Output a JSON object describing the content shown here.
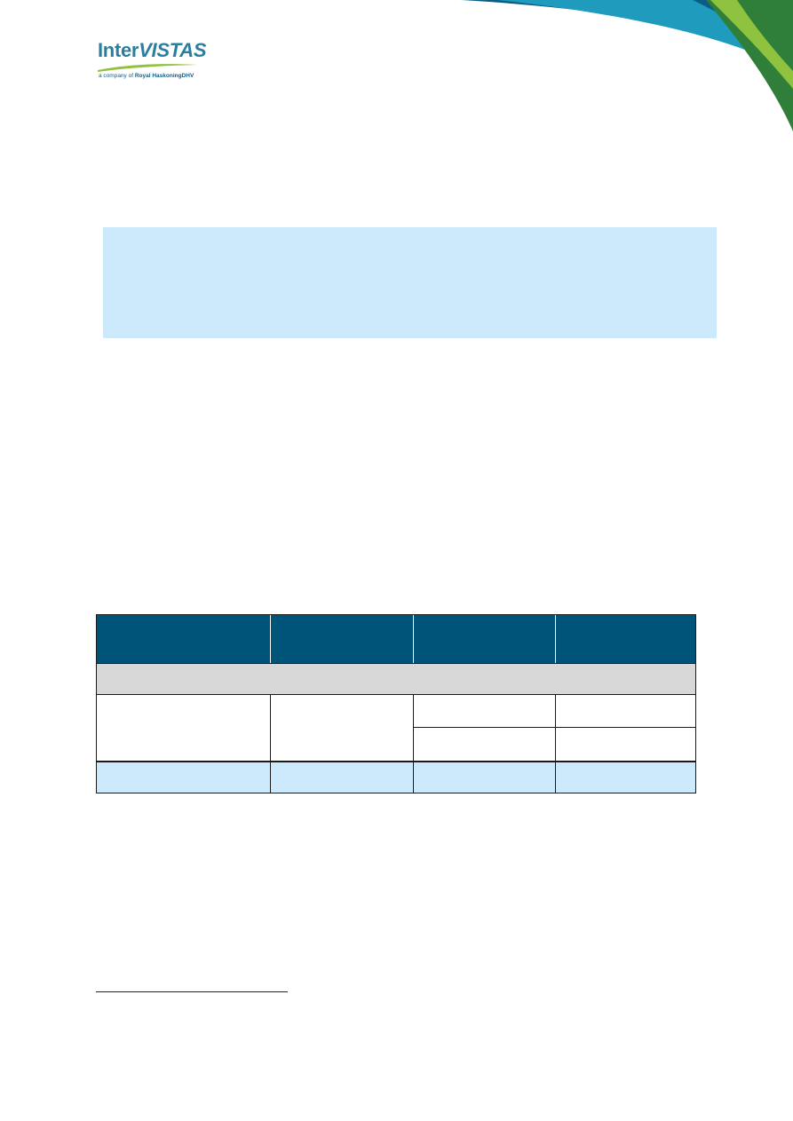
{
  "branding": {
    "logo_name_part1": "Inter",
    "logo_name_part2": "VISTAS",
    "tagline_prefix": "a company of ",
    "tagline_company": "Royal HaskoningDHV",
    "colors": {
      "swoosh_dark_blue": "#0a5e86",
      "swoosh_teal": "#1f9bbd",
      "swoosh_green": "#2f7f3a",
      "swoosh_light_green": "#8fc33f",
      "logo_text": "#2a7f9e"
    }
  },
  "colors": {
    "highlight_fill": "#cdeafd",
    "table_header_fill": "#00547a",
    "table_group_fill": "#d8d8d8",
    "table_total_fill": "#cdeafd"
  }
}
